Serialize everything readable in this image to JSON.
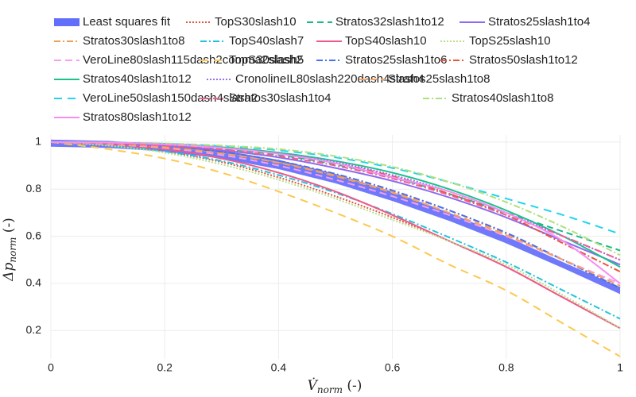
{
  "chart_data": {
    "type": "line",
    "title": "",
    "xlabel": {
      "main": "V̇",
      "sub": "norm",
      "unit": " (-)"
    },
    "ylabel": {
      "main": "Δp",
      "sub": "norm",
      "unit": " (-)"
    },
    "xlim": [
      0,
      1
    ],
    "ylim": [
      0.08,
      1.03
    ],
    "xticks": [
      0,
      0.2,
      0.4,
      0.6,
      0.8,
      1
    ],
    "xtick_labels": [
      "0",
      "0.2",
      "0.4",
      "0.6",
      "0.8",
      "1"
    ],
    "yticks": [
      0.2,
      0.4,
      0.6,
      0.8,
      1
    ],
    "ytick_labels": [
      "0.2",
      "0.4",
      "0.6",
      "0.8",
      "1"
    ],
    "grid": true,
    "legend_position": "top",
    "x": [
      0,
      0.1,
      0.2,
      0.3,
      0.4,
      0.5,
      0.6,
      0.7,
      0.8,
      0.9,
      1.0
    ],
    "fit_band": {
      "name": "Least squares fit",
      "color": "#636efa",
      "upper": [
        1.01,
        1.005,
        0.99,
        0.965,
        0.925,
        0.865,
        0.79,
        0.7,
        0.6,
        0.49,
        0.385
      ],
      "lower": [
        0.98,
        0.975,
        0.96,
        0.93,
        0.885,
        0.825,
        0.75,
        0.665,
        0.57,
        0.465,
        0.355
      ]
    },
    "series": [
      {
        "name": "TopS30slash10",
        "color": "#e5543e",
        "dash": "2,2",
        "values": [
          1.0,
          0.985,
          0.96,
          0.915,
          0.85,
          0.77,
          0.68,
          0.58,
          0.47,
          0.34,
          0.21
        ]
      },
      {
        "name": "Stratos32slash1to12",
        "color": "#1ab88a",
        "dash": "8,5",
        "values": [
          1.0,
          0.995,
          0.985,
          0.97,
          0.945,
          0.905,
          0.85,
          0.78,
          0.7,
          0.62,
          0.54
        ]
      },
      {
        "name": "Stratos25slash1to4",
        "color": "#8c6bf0",
        "dash": "none",
        "values": [
          1.0,
          0.995,
          0.985,
          0.965,
          0.935,
          0.89,
          0.835,
          0.765,
          0.68,
          0.58,
          0.48
        ]
      },
      {
        "name": "Stratos30slash1to8",
        "color": "#f0a050",
        "dash": "8,3,2,3",
        "values": [
          1.0,
          0.993,
          0.98,
          0.955,
          0.915,
          0.86,
          0.79,
          0.71,
          0.61,
          0.5,
          0.38
        ]
      },
      {
        "name": "TopS40slash7",
        "color": "#22c3dd",
        "dash": "8,3,2,3",
        "values": [
          1.0,
          0.985,
          0.96,
          0.92,
          0.86,
          0.785,
          0.695,
          0.595,
          0.49,
          0.37,
          0.25
        ]
      },
      {
        "name": "TopS40slash10",
        "color": "#ee5a8a",
        "dash": "none",
        "values": [
          1.0,
          0.99,
          0.97,
          0.93,
          0.87,
          0.79,
          0.69,
          0.58,
          0.47,
          0.34,
          0.21
        ]
      },
      {
        "name": "TopS25slash10",
        "color": "#b6e08a",
        "dash": "2,2",
        "values": [
          1.0,
          0.985,
          0.955,
          0.905,
          0.84,
          0.76,
          0.67,
          0.58,
          0.48,
          0.35,
          0.21
        ]
      },
      {
        "name": "VeroLine80slash115dash2comma2slash2",
        "color": "#f59ff0",
        "dash": "9,5",
        "values": [
          1.0,
          0.99,
          0.975,
          0.945,
          0.9,
          0.84,
          0.77,
          0.69,
          0.6,
          0.5,
          0.4
        ]
      },
      {
        "name": "TopS30slash5",
        "color": "#fcc84e",
        "dash": "10,7",
        "values": [
          1.0,
          0.97,
          0.93,
          0.87,
          0.79,
          0.7,
          0.6,
          0.48,
          0.37,
          0.23,
          0.09
        ]
      },
      {
        "name": "Stratos25slash1to6",
        "color": "#4a6ef0",
        "dash": "8,3,2,3",
        "values": [
          1.0,
          0.994,
          0.982,
          0.958,
          0.92,
          0.865,
          0.795,
          0.71,
          0.615,
          0.5,
          0.38
        ]
      },
      {
        "name": "Stratos50slash1to12",
        "color": "#e8553a",
        "dash": "8,3,2,3",
        "values": [
          1.0,
          0.997,
          0.99,
          0.975,
          0.95,
          0.91,
          0.855,
          0.78,
          0.69,
          0.57,
          0.45
        ]
      },
      {
        "name": "Stratos40slash1to12",
        "color": "#1ec08c",
        "dash": "none",
        "values": [
          1.0,
          0.998,
          0.992,
          0.978,
          0.955,
          0.92,
          0.87,
          0.8,
          0.71,
          0.6,
          0.47
        ]
      },
      {
        "name": "CronolineIL80slash220dash4slash4",
        "color": "#9a6cf0",
        "dash": "2,2",
        "values": [
          1.0,
          0.997,
          0.99,
          0.975,
          0.952,
          0.915,
          0.86,
          0.79,
          0.7,
          0.6,
          0.5
        ]
      },
      {
        "name": "Stratos25slash1to8",
        "color": "#f7a060",
        "dash": "9,5",
        "values": [
          1.0,
          0.993,
          0.978,
          0.952,
          0.912,
          0.855,
          0.785,
          0.7,
          0.605,
          0.5,
          0.39
        ]
      },
      {
        "name": "VeroLine50slash150dash4slash2",
        "color": "#22d4ec",
        "dash": "10,7",
        "values": [
          1.0,
          0.998,
          0.993,
          0.983,
          0.965,
          0.935,
          0.89,
          0.83,
          0.76,
          0.69,
          0.61
        ]
      },
      {
        "name": "Stratos30slash1to4",
        "color": "#f0608a",
        "dash": "8,3,2,3",
        "values": [
          1.0,
          0.995,
          0.985,
          0.968,
          0.94,
          0.9,
          0.845,
          0.775,
          0.69,
          0.6,
          0.5
        ]
      },
      {
        "name": "Stratos40slash1to8",
        "color": "#aee07c",
        "dash": "8,3,2,3",
        "values": [
          1.0,
          0.998,
          0.994,
          0.985,
          0.97,
          0.94,
          0.895,
          0.83,
          0.745,
          0.64,
          0.52
        ]
      },
      {
        "name": "Stratos80slash1to12",
        "color": "#f58ef3",
        "dash": "none",
        "values": [
          1.0,
          0.998,
          0.99,
          0.975,
          0.95,
          0.91,
          0.85,
          0.79,
          0.7,
          0.58,
          0.4
        ]
      }
    ]
  }
}
